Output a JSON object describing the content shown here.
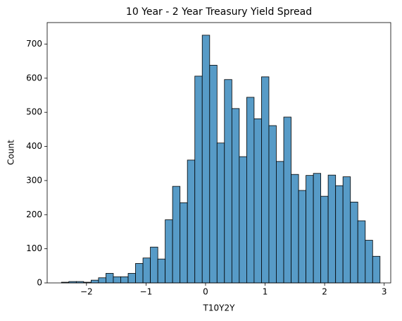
{
  "chart_data": {
    "type": "histogram",
    "title": "10 Year - 2 Year Treasury Yield Spread",
    "x_label": "T10Y2Y",
    "y_label": "Count",
    "color": "#579bc7",
    "edgecolor": "#000000",
    "bins": [
      -2.42,
      -2.296,
      -2.171,
      -2.047,
      -1.922,
      -1.798,
      -1.673,
      -1.549,
      -1.425,
      -1.3,
      -1.176,
      -1.051,
      -0.927,
      -0.802,
      -0.678,
      -0.554,
      -0.429,
      -0.305,
      -0.18,
      -0.056,
      0.069,
      0.193,
      0.317,
      0.442,
      0.566,
      0.691,
      0.815,
      0.94,
      1.064,
      1.188,
      1.313,
      1.437,
      1.562,
      1.686,
      1.811,
      1.935,
      2.059,
      2.184,
      2.308,
      2.433,
      2.557,
      2.682,
      2.806,
      2.93
    ],
    "values": [
      2,
      4,
      4,
      2,
      8,
      15,
      28,
      18,
      18,
      28,
      57,
      73,
      105,
      70,
      185,
      283,
      235,
      360,
      606,
      726,
      638,
      410,
      596,
      511,
      370,
      544,
      481,
      604,
      461,
      356,
      486,
      318,
      271,
      315,
      321,
      254,
      316,
      285,
      311,
      237,
      182,
      125,
      78
    ],
    "xlim": [
      -2.66,
      3.11
    ],
    "ylim": [
      0,
      763
    ],
    "xticks": [
      {
        "value": -2,
        "label": "−2"
      },
      {
        "value": -1,
        "label": "−1"
      },
      0,
      1,
      2,
      3
    ],
    "yticks": [
      0,
      100,
      200,
      300,
      400,
      500,
      600,
      700
    ]
  }
}
